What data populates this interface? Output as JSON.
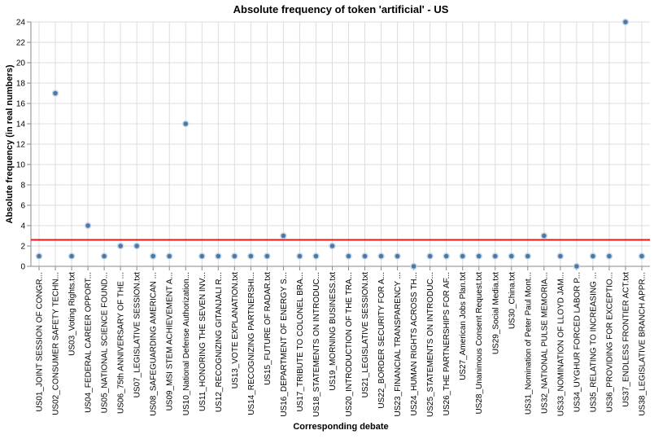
{
  "chart_data": {
    "type": "scatter",
    "title": "Absolute frequency of token 'artificial' - US",
    "xlabel": "Corresponding debate",
    "ylabel": "Absolute frequency (in real numbers)",
    "ylim": [
      0,
      24
    ],
    "yticks": [
      0,
      2,
      4,
      6,
      8,
      10,
      12,
      14,
      16,
      18,
      20,
      22,
      24
    ],
    "grid": true,
    "legend": "none",
    "colors": {
      "point_fill": "#4c78a8",
      "point_stroke": "#c9d6e3",
      "mean_line": "#e41a1c",
      "axis": "#888888",
      "grid": "#dddddd"
    },
    "mean_line_value": 2.6,
    "categories": [
      "US01_JOINT SESSION OF CONGR...",
      "US02_CONSUMER SAFETY TECHN...",
      "US03_Voting Rights.txt",
      "US04_FEDERAL CAREER OPPORT...",
      "US05_NATIONAL SCIENCE FOUND...",
      "US06_75th ANNIVERSARY OF THE ...",
      "US07_LEGISLATIVE SESSION.txt",
      "US08_SAFEGUARDING AMERICAN ...",
      "US09_MSI STEM ACHIEVEMENT A...",
      "US10_National Defense Authorization...",
      "US11_HONORING THE SEVEN INV...",
      "US12_RECOGNIZING GITANJALI R...",
      "US13_VOTE EXPLANATION.txt",
      "US14_RECOGNIZING PARTNERSHI...",
      "US15_FUTURE OF RADAR.txt",
      "US16_DEPARTMENT OF ENERGY S...",
      "US17_TRIBUTE TO COLONEL BRA...",
      "US18_STATEMENTS ON INTRODUC...",
      "US19_MORNING BUSINESS.txt",
      "US20_INTRODUCTION OF THE TRA...",
      "US21_LEGISLATIVE SESSION.txt",
      "US22_BORDER SECURITY FOR A...",
      "US23_FINANCIAL TRANSPARENCY ...",
      "US24_HUMAN RIGHTS ACROSS TH...",
      "US25_STATEMENTS ON INTRODUC...",
      "US26_THE PARTNERSHIPS FOR AF...",
      "US27_American Jobs Plan.txt",
      "US28_Unanimous Consent Request.txt",
      "US29_Social Media.txt",
      "US30_China.txt",
      "US31_Nomination of Peter Paul Mont...",
      "US32_NATIONAL PULSE MEMORIA...",
      "US33_NOMINATION OF LLOYD JAM...",
      "US34_UYGHUR FORCED LABOR P...",
      "US35_RELATING TO INCREASING ...",
      "US36_PROVIDING FOR EXCEPTIO...",
      "US37_ENDLESS FRONTIER ACT.txt",
      "US38_LEGISLATIVE BRANCH APPR..."
    ],
    "values": [
      1,
      17,
      1,
      4,
      1,
      2,
      2,
      1,
      1,
      14,
      1,
      1,
      1,
      1,
      1,
      3,
      1,
      1,
      2,
      1,
      1,
      1,
      1,
      0,
      1,
      1,
      1,
      1,
      1,
      1,
      1,
      3,
      1,
      0,
      1,
      1,
      24,
      1
    ]
  }
}
